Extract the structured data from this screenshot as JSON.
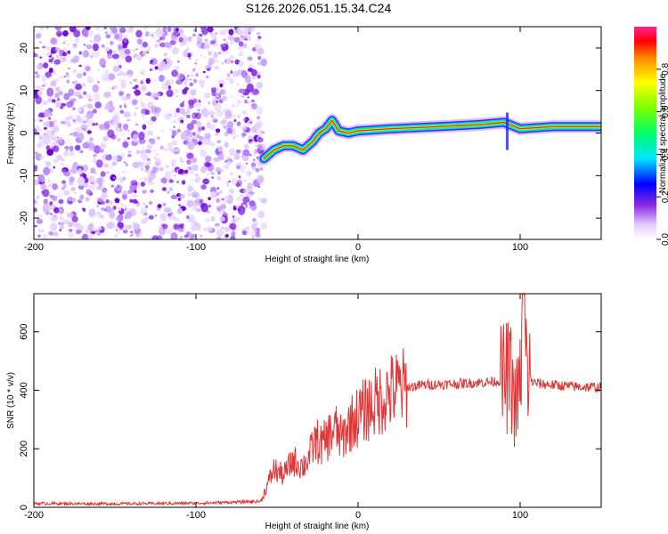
{
  "title": "S126.2026.051.15.34.C24",
  "chart_data": [
    {
      "type": "heatmap",
      "xlabel": "Height of straight line (km)",
      "ylabel": "Frequency (Hz)",
      "xlim": [
        -200,
        150
      ],
      "ylim": [
        -25,
        25
      ],
      "xticks": [
        -200,
        -100,
        0,
        100
      ],
      "xtick_labels": [
        "-200",
        "-100",
        "0",
        "100"
      ],
      "yticks": [
        -20,
        -10,
        0,
        10,
        20
      ],
      "ytick_labels": [
        "-20",
        "-10",
        "0",
        "10",
        "20"
      ],
      "colorbar": {
        "label": "Normalized spectral amplitude",
        "range": [
          0,
          1
        ],
        "ticks": [
          0.0,
          0.2,
          0.4,
          0.6,
          0.8
        ],
        "tick_labels": [
          "0.0",
          "0.2",
          "0.4",
          "0.6",
          "0.8"
        ]
      },
      "noise_region_x": [
        -200,
        -58
      ],
      "trace": [
        {
          "x": -58,
          "y": -6
        },
        {
          "x": -52,
          "y": -4
        },
        {
          "x": -46,
          "y": -3
        },
        {
          "x": -40,
          "y": -3
        },
        {
          "x": -34,
          "y": -4
        },
        {
          "x": -28,
          "y": -2
        },
        {
          "x": -24,
          "y": 0
        },
        {
          "x": -20,
          "y": 1
        },
        {
          "x": -16,
          "y": 3
        },
        {
          "x": -12,
          "y": 0.5
        },
        {
          "x": -6,
          "y": 0
        },
        {
          "x": 0,
          "y": 0.5
        },
        {
          "x": 20,
          "y": 1
        },
        {
          "x": 50,
          "y": 1.5
        },
        {
          "x": 75,
          "y": 2
        },
        {
          "x": 90,
          "y": 2.5
        },
        {
          "x": 100,
          "y": 1
        },
        {
          "x": 120,
          "y": 1.5
        },
        {
          "x": 150,
          "y": 1.5
        }
      ],
      "vertical_streak": {
        "x": 92,
        "y_range": [
          -10,
          12
        ]
      }
    },
    {
      "type": "line",
      "xlabel": "Height of straight line (km)",
      "ylabel": "SNR (10 * v/v)",
      "xlim": [
        -200,
        150
      ],
      "ylim": [
        0,
        730
      ],
      "xticks": [
        -200,
        -100,
        0,
        100
      ],
      "xtick_labels": [
        "-200",
        "-100",
        "0",
        "100"
      ],
      "yticks": [
        0,
        200,
        400,
        600
      ],
      "ytick_labels": [
        "0",
        "200",
        "400",
        "600"
      ],
      "color": "#e03535",
      "series": [
        {
          "name": "SNR",
          "x": [
            -200,
            -150,
            -100,
            -60,
            -52,
            -46,
            -40,
            -34,
            -30,
            -26,
            -22,
            -18,
            -14,
            -10,
            -6,
            -2,
            4,
            10,
            16,
            22,
            30,
            40,
            50,
            60,
            70,
            80,
            88,
            94,
            97,
            100,
            102,
            104,
            108,
            120,
            135,
            150
          ],
          "y": [
            13,
            12,
            14,
            20,
            130,
            110,
            160,
            140,
            175,
            230,
            210,
            245,
            270,
            230,
            280,
            300,
            330,
            355,
            378,
            400,
            410,
            418,
            420,
            422,
            425,
            428,
            432,
            450,
            340,
            420,
            730,
            470,
            425,
            418,
            412,
            410
          ]
        }
      ]
    }
  ]
}
